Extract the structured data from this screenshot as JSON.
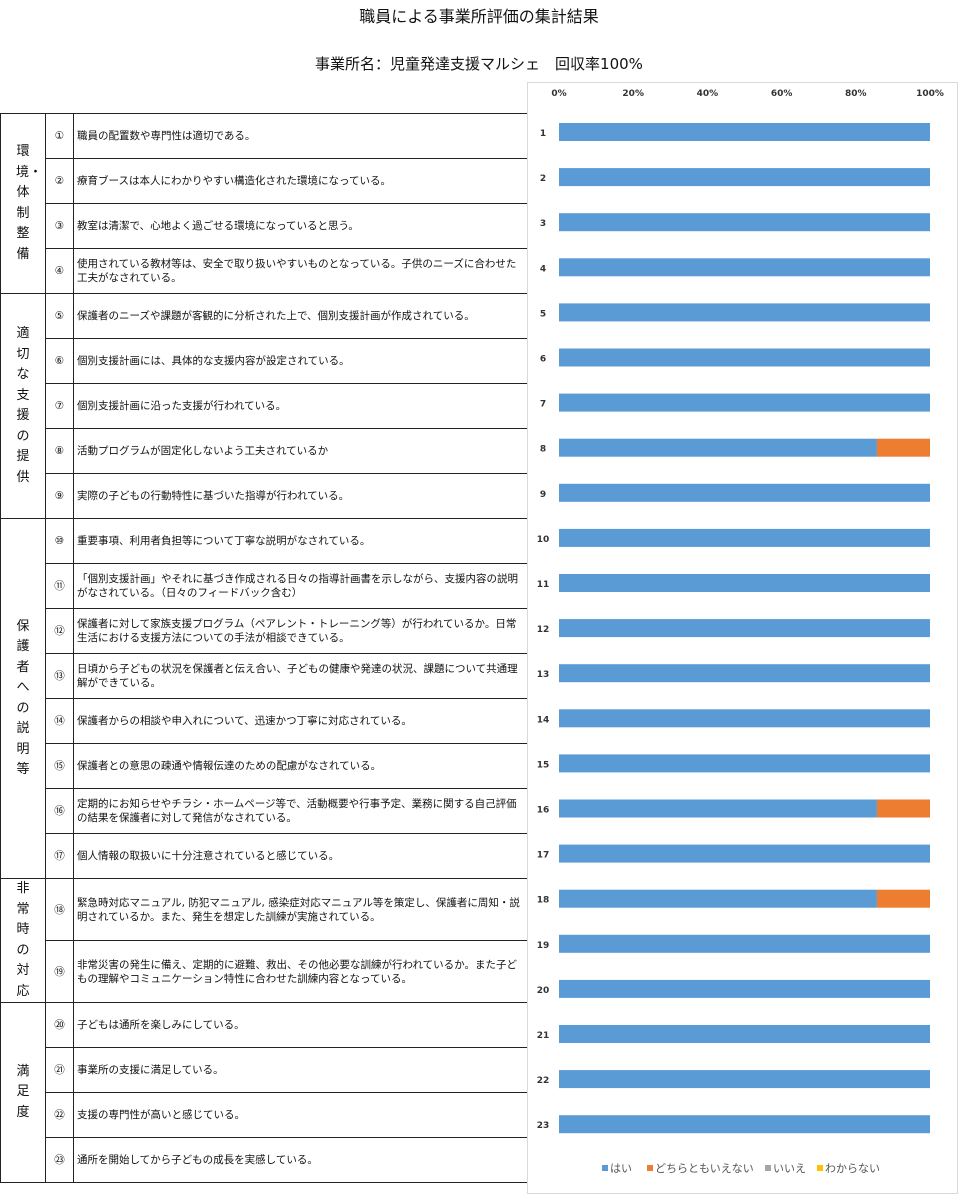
{
  "header": {
    "title": "職員による事業所評価の集計結果",
    "subtitle": "事業所名：児童発達支援マルシェ　回収率100%"
  },
  "survey": {
    "categories": [
      {
        "label": "環境・体制整備",
        "rows": 4
      },
      {
        "label": "適切な支援の提供",
        "rows": 5
      },
      {
        "label": "保護者への説明等",
        "rows": 8
      },
      {
        "label": "非常時の対応",
        "rows": 2
      },
      {
        "label": "満足度",
        "rows": 4
      }
    ],
    "questions": [
      {
        "num": "①",
        "text": "職員の配置数や専門性は適切である。"
      },
      {
        "num": "②",
        "text": "療育ブースは本人にわかりやすい構造化された環境になっている。"
      },
      {
        "num": "③",
        "text": "教室は清潔で、心地よく過ごせる環境になっていると思う。"
      },
      {
        "num": "④",
        "text": "使用されている教材等は、安全で取り扱いやすいものとなっている。子供のニーズに合わせた工夫がなされている。"
      },
      {
        "num": "⑤",
        "text": "保護者のニーズや課題が客観的に分析された上で、個別支援計画が作成されている。"
      },
      {
        "num": "⑥",
        "text": "個別支援計画には、具体的な支援内容が設定されている。"
      },
      {
        "num": "⑦",
        "text": "個別支援計画に沿った支援が行われている。"
      },
      {
        "num": "⑧",
        "text": "活動プログラムが固定化しないよう工夫されているか"
      },
      {
        "num": "⑨",
        "text": "実際の子どもの行動特性に基づいた指導が行われている。"
      },
      {
        "num": "⑩",
        "text": "重要事項、利用者負担等について丁寧な説明がなされている。"
      },
      {
        "num": "⑪",
        "text": "「個別支援計画」やそれに基づき作成される日々の指導計画書を示しながら、支援内容の説明がなされている。（日々のフィードバック含む）"
      },
      {
        "num": "⑫",
        "text": "保護者に対して家族支援プログラム（ペアレント・トレーニング等）が行われているか。日常生活における支援方法についての手法が相談できている。"
      },
      {
        "num": "⑬",
        "text": "日頃から子どもの状況を保護者と伝え合い、子どもの健康や発達の状況、課題について共通理解ができている。"
      },
      {
        "num": "⑭",
        "text": "保護者からの相談や申入れについて、迅速かつ丁寧に対応されている。"
      },
      {
        "num": "⑮",
        "text": "保護者との意思の疎通や情報伝達のための配慮がなされている。"
      },
      {
        "num": "⑯",
        "text": "定期的にお知らせやチラシ・ホームページ等で、活動概要や行事予定、業務に関する自己評価の結果を保護者に対して発信がなされている。"
      },
      {
        "num": "⑰",
        "text": "個人情報の取扱いに十分注意されていると感じている。"
      },
      {
        "num": "⑱",
        "text": "緊急時対応マニュアル, 防犯マニュアル, 感染症対応マニュアル等を策定し、保護者に周知・説明されているか。また、発生を想定した訓練が実施されている。"
      },
      {
        "num": "⑲",
        "text": "非常災害の発生に備え、定期的に避難、救出、その他必要な訓練が行われているか。また子どもの理解やコミュニケーション特性に合わせた訓練内容となっている。"
      },
      {
        "num": "⑳",
        "text": "子どもは通所を楽しみにしている。"
      },
      {
        "num": "㉑",
        "text": "事業所の支援に満足している。"
      },
      {
        "num": "㉒",
        "text": "支援の専門性が高いと感じている。"
      },
      {
        "num": "㉓",
        "text": "通所を開始してから子どもの成長を実感している。"
      }
    ]
  },
  "chart_data": {
    "type": "bar",
    "orientation": "horizontal",
    "stacked": "percent",
    "categories": [
      "1",
      "2",
      "3",
      "4",
      "5",
      "6",
      "7",
      "8",
      "9",
      "10",
      "11",
      "12",
      "13",
      "14",
      "15",
      "16",
      "17",
      "18",
      "19",
      "20",
      "21",
      "22",
      "23"
    ],
    "series": [
      {
        "name": "はい",
        "color": "#5B9BD5",
        "values": [
          100,
          100,
          100,
          100,
          100,
          100,
          100,
          85.7,
          100,
          100,
          100,
          100,
          100,
          100,
          100,
          85.7,
          100,
          85.7,
          100,
          100,
          100,
          100,
          100
        ]
      },
      {
        "name": "どちらともいえない",
        "color": "#ED7D31",
        "values": [
          0,
          0,
          0,
          0,
          0,
          0,
          0,
          14.3,
          0,
          0,
          0,
          0,
          0,
          0,
          0,
          14.3,
          0,
          14.3,
          0,
          0,
          0,
          0,
          0
        ]
      },
      {
        "name": "いいえ",
        "color": "#A5A5A5",
        "values": [
          0,
          0,
          0,
          0,
          0,
          0,
          0,
          0,
          0,
          0,
          0,
          0,
          0,
          0,
          0,
          0,
          0,
          0,
          0,
          0,
          0,
          0,
          0
        ]
      },
      {
        "name": "わからない",
        "color": "#FFC000",
        "values": [
          0,
          0,
          0,
          0,
          0,
          0,
          0,
          0,
          0,
          0,
          0,
          0,
          0,
          0,
          0,
          0,
          0,
          0,
          0,
          0,
          0,
          0,
          0
        ]
      }
    ],
    "xlim": [
      0,
      100
    ],
    "xticks": [
      "0%",
      "20%",
      "40%",
      "60%",
      "80%",
      "100%"
    ],
    "grid": false,
    "legend_position": "bottom"
  }
}
